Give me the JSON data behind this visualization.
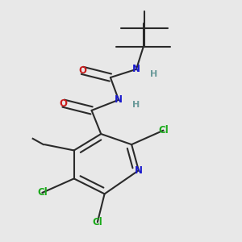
{
  "background_color": "#e8e8e8",
  "figsize": [
    3.0,
    3.0
  ],
  "dpi": 100,
  "colors": {
    "bond": "#2a2a2a",
    "N": "#1a1acc",
    "O": "#cc1a1a",
    "Cl": "#1aaa1a",
    "H": "#6a9a9a",
    "C": "#2a2a2a"
  }
}
